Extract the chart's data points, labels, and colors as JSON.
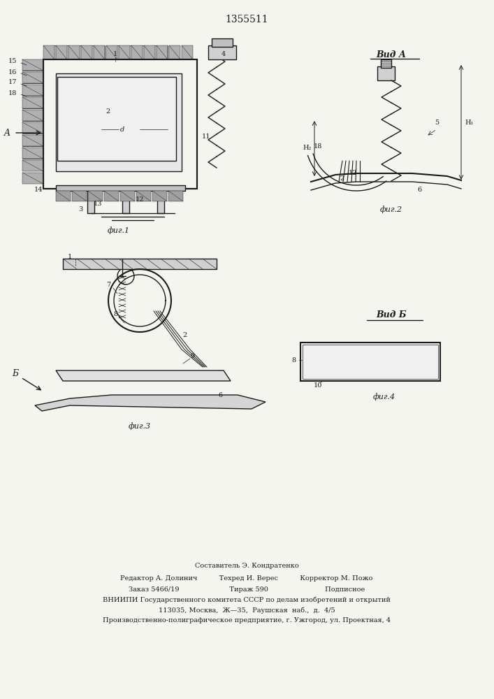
{
  "patent_number": "1355511",
  "background_color": "#f5f5f0",
  "line_color": "#1a1a1a",
  "footer_lines": [
    "Составитель Э. Кондратенко",
    "Редактор А. Долинич          Техред И. Верес          Корректор М. Пожо",
    "Заказ 5466/19                       Тираж 590                          Подписное",
    "ВНИИПИ Государственного комитета СССР по делам изобретений и открытий",
    "113035, Москва,  Ж—35,  Раушская  наб.,  д.  4/5",
    "Производственно-полиграфическое предприятие, г. Ужгород, ул. Проектная, 4"
  ],
  "fig_labels": [
    "фиг.1",
    "фиг.2",
    "фиг.3",
    "фиг.4"
  ],
  "view_labels": [
    "Вид А",
    "Вид Б"
  ]
}
